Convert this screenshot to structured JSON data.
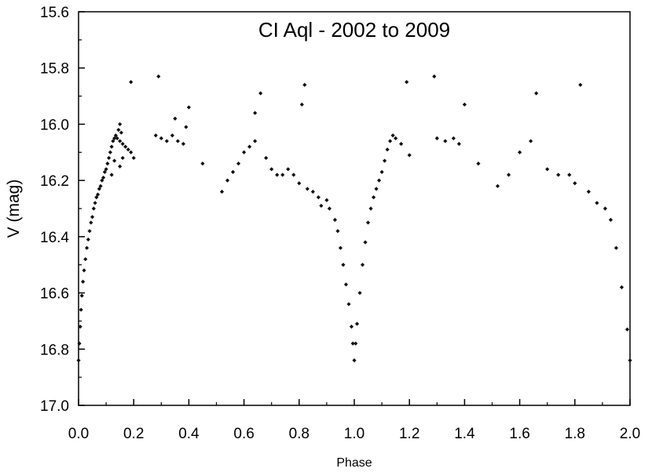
{
  "chart_data": {
    "type": "scatter",
    "title": "CI Aql - 2002 to 2009",
    "xlabel": "Phase",
    "ylabel": "V (mag)",
    "xlim": [
      0.0,
      2.0
    ],
    "ylim": [
      15.6,
      17.0
    ],
    "y_inverted": true,
    "x_ticks": [
      "0.0",
      "0.2",
      "0.4",
      "0.6",
      "0.8",
      "1.0",
      "1.2",
      "1.4",
      "1.6",
      "1.8",
      "2.0"
    ],
    "y_ticks": [
      "15.6",
      "15.8",
      "16.0",
      "16.2",
      "16.4",
      "16.6",
      "16.8",
      "17.0"
    ],
    "grid": false,
    "legend": "none",
    "marker_color": "#111111",
    "series": [
      {
        "points": [
          [
            0.0,
            16.84
          ],
          [
            0.003,
            16.78
          ],
          [
            0.006,
            16.72
          ],
          [
            0.009,
            16.66
          ],
          [
            0.012,
            16.61
          ],
          [
            0.016,
            16.56
          ],
          [
            0.02,
            16.52
          ],
          [
            0.025,
            16.48
          ],
          [
            0.03,
            16.44
          ],
          [
            0.035,
            16.41
          ],
          [
            0.04,
            16.38
          ],
          [
            0.045,
            16.35
          ],
          [
            0.05,
            16.33
          ],
          [
            0.055,
            16.3
          ],
          [
            0.06,
            16.28
          ],
          [
            0.065,
            16.26
          ],
          [
            0.07,
            16.25
          ],
          [
            0.075,
            16.23
          ],
          [
            0.08,
            16.22
          ],
          [
            0.085,
            16.2
          ],
          [
            0.09,
            16.19
          ],
          [
            0.095,
            16.17
          ],
          [
            0.1,
            16.16
          ],
          [
            0.105,
            16.14
          ],
          [
            0.11,
            16.12
          ],
          [
            0.115,
            16.1
          ],
          [
            0.12,
            16.08
          ],
          [
            0.125,
            16.06
          ],
          [
            0.13,
            16.05
          ],
          [
            0.135,
            16.04
          ],
          [
            0.14,
            16.05
          ],
          [
            0.15,
            16.06
          ],
          [
            0.16,
            16.07
          ],
          [
            0.17,
            16.08
          ],
          [
            0.18,
            16.09
          ],
          [
            0.19,
            16.1
          ],
          [
            0.2,
            16.12
          ],
          [
            0.15,
            16.0
          ],
          [
            0.145,
            16.02
          ],
          [
            0.155,
            16.03
          ],
          [
            0.13,
            16.13
          ],
          [
            0.15,
            16.15
          ],
          [
            0.12,
            16.18
          ],
          [
            0.16,
            16.12
          ],
          [
            0.19,
            15.85
          ],
          [
            0.29,
            15.83
          ],
          [
            0.28,
            16.04
          ],
          [
            0.3,
            16.05
          ],
          [
            0.32,
            16.06
          ],
          [
            0.34,
            16.04
          ],
          [
            0.36,
            16.06
          ],
          [
            0.38,
            16.07
          ],
          [
            0.39,
            16.01
          ],
          [
            0.4,
            15.94
          ],
          [
            0.35,
            15.98
          ],
          [
            0.45,
            16.14
          ],
          [
            0.52,
            16.24
          ],
          [
            0.54,
            16.2
          ],
          [
            0.56,
            16.17
          ],
          [
            0.58,
            16.14
          ],
          [
            0.6,
            16.1
          ],
          [
            0.62,
            16.08
          ],
          [
            0.64,
            16.06
          ],
          [
            0.66,
            15.89
          ],
          [
            0.64,
            15.96
          ],
          [
            0.68,
            16.12
          ],
          [
            0.7,
            16.16
          ],
          [
            0.72,
            16.18
          ],
          [
            0.74,
            16.18
          ],
          [
            0.76,
            16.16
          ],
          [
            0.78,
            16.18
          ],
          [
            0.8,
            16.21
          ],
          [
            0.82,
            15.86
          ],
          [
            0.81,
            15.93
          ],
          [
            0.83,
            16.23
          ],
          [
            0.85,
            16.24
          ],
          [
            0.87,
            16.26
          ],
          [
            0.88,
            16.29
          ],
          [
            0.9,
            16.27
          ],
          [
            0.91,
            16.3
          ],
          [
            0.93,
            16.34
          ],
          [
            0.94,
            16.38
          ],
          [
            0.95,
            16.44
          ],
          [
            0.96,
            16.5
          ],
          [
            0.97,
            16.57
          ],
          [
            0.98,
            16.64
          ],
          [
            0.99,
            16.72
          ],
          [
            0.995,
            16.78
          ],
          [
            1.0,
            16.84
          ],
          [
            1.005,
            16.78
          ],
          [
            1.01,
            16.71
          ],
          [
            1.02,
            16.6
          ],
          [
            1.03,
            16.5
          ],
          [
            1.04,
            16.42
          ],
          [
            1.05,
            16.35
          ],
          [
            1.06,
            16.3
          ],
          [
            1.07,
            16.26
          ],
          [
            1.08,
            16.23
          ],
          [
            1.09,
            16.2
          ],
          [
            1.1,
            16.17
          ],
          [
            1.11,
            16.13
          ],
          [
            1.12,
            16.09
          ],
          [
            1.13,
            16.06
          ],
          [
            1.14,
            16.04
          ],
          [
            1.15,
            16.05
          ],
          [
            1.17,
            16.07
          ],
          [
            1.19,
            15.85
          ],
          [
            1.2,
            16.11
          ],
          [
            1.29,
            15.83
          ],
          [
            1.3,
            16.05
          ],
          [
            1.33,
            16.06
          ],
          [
            1.36,
            16.05
          ],
          [
            1.38,
            16.07
          ],
          [
            1.4,
            15.93
          ],
          [
            1.45,
            16.14
          ],
          [
            1.52,
            16.22
          ],
          [
            1.56,
            16.18
          ],
          [
            1.6,
            16.1
          ],
          [
            1.64,
            16.06
          ],
          [
            1.66,
            15.89
          ],
          [
            1.7,
            16.16
          ],
          [
            1.74,
            16.18
          ],
          [
            1.78,
            16.18
          ],
          [
            1.8,
            16.21
          ],
          [
            1.82,
            15.86
          ],
          [
            1.85,
            16.24
          ],
          [
            1.88,
            16.28
          ],
          [
            1.91,
            16.3
          ],
          [
            1.93,
            16.34
          ],
          [
            1.95,
            16.44
          ],
          [
            1.97,
            16.58
          ],
          [
            1.99,
            16.73
          ],
          [
            2.0,
            16.84
          ]
        ]
      }
    ]
  }
}
